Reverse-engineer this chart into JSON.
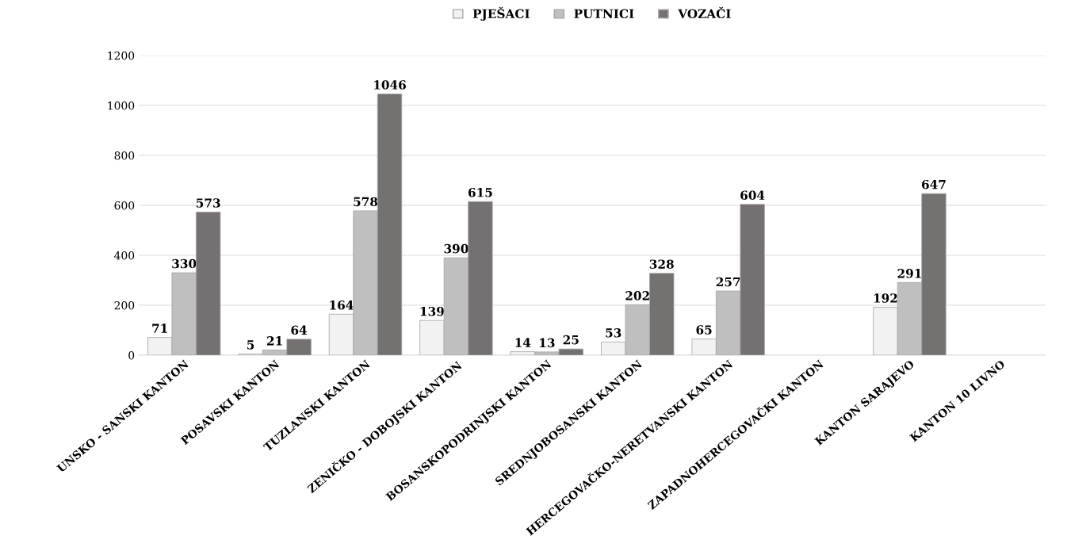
{
  "chart_data": {
    "type": "bar",
    "categories": [
      "UNSKO - SANSKI KANTON",
      "POSAVSKI KANTON",
      "TUZLANSKI KANTON",
      "ZENIČKO - DOBOJSKI KANTON",
      "BOSANSKOPODRINJSKI KANTON",
      "SREDNJOBOSANSKI KANTON",
      "HERCEGOVAČKO-NERETVANSKI KANTON",
      "ZAPADNOHERCEGOVAČKI KANTON",
      "KANTON SARAJEVO",
      "KANTON 10 LIVNO"
    ],
    "series": [
      {
        "name": "PJEŠACI",
        "color": "#f2f2f2",
        "values": [
          71,
          5,
          164,
          139,
          14,
          53,
          65,
          null,
          192,
          null
        ]
      },
      {
        "name": "PUTNICI",
        "color": "#bfbfbf",
        "values": [
          330,
          21,
          578,
          390,
          13,
          202,
          257,
          null,
          291,
          null
        ]
      },
      {
        "name": "VOZAČI",
        "color": "#767171",
        "values": [
          573,
          64,
          1046,
          615,
          25,
          328,
          604,
          null,
          647,
          null
        ]
      }
    ],
    "ylim": [
      0,
      1200
    ],
    "yticks": [
      0,
      200,
      400,
      600,
      800,
      1000,
      1200
    ],
    "grid": "y",
    "legend": "top",
    "data_labels": true
  }
}
